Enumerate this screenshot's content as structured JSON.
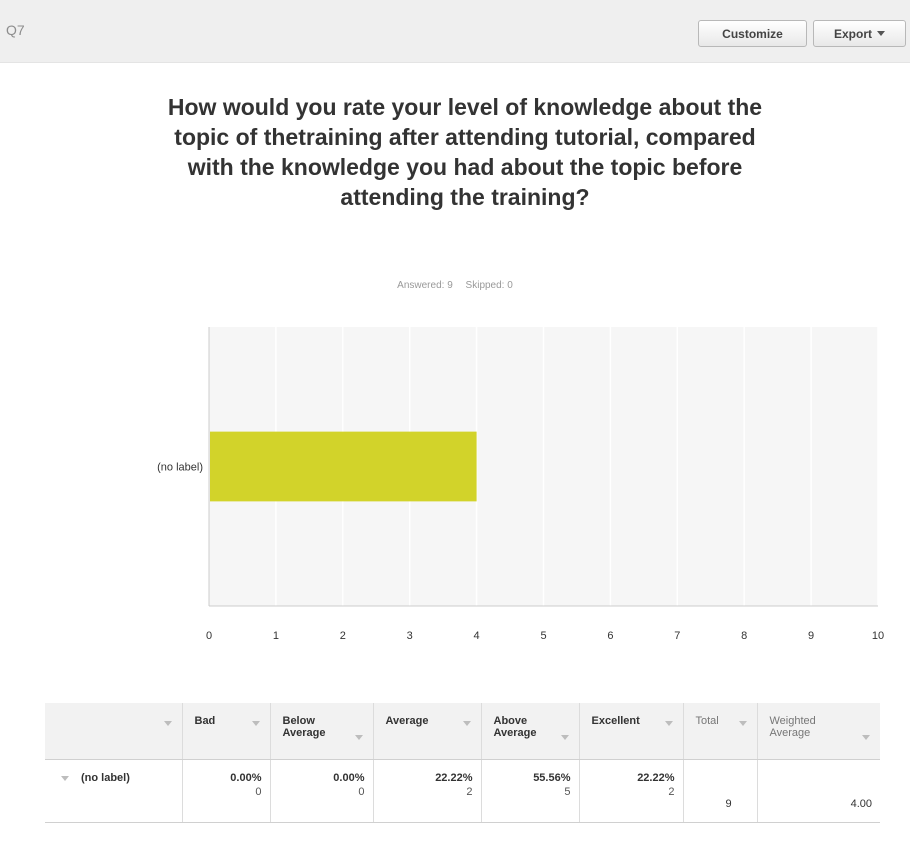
{
  "question": {
    "number": "Q7",
    "title": "How would you rate your level of knowledge about the topic of thetraining after attending tutorial, compared with the knowledge you had about the topic before attending the training?",
    "answered": "Answered: 9",
    "skipped": "Skipped: 0"
  },
  "toolbar": {
    "customize_label": "Customize",
    "export_label": "Export"
  },
  "chart_data": {
    "type": "bar",
    "orientation": "horizontal",
    "categories": [
      "(no label)"
    ],
    "values": [
      4.0
    ],
    "xlim": [
      0,
      10
    ],
    "x_ticks": [
      "0",
      "1",
      "2",
      "3",
      "4",
      "5",
      "6",
      "7",
      "8",
      "9",
      "10"
    ],
    "bar_color": "#d2d32a",
    "grid": true,
    "title": "",
    "xlabel": "",
    "ylabel": ""
  },
  "table": {
    "headers": [
      "",
      "Bad",
      "Below Average",
      "Average",
      "Above Average",
      "Excellent",
      "Total",
      "Weighted Average"
    ],
    "rows": [
      {
        "label": "(no label)",
        "cells": [
          {
            "pct": "0.00%",
            "count": "0"
          },
          {
            "pct": "0.00%",
            "count": "0"
          },
          {
            "pct": "22.22%",
            "count": "2"
          },
          {
            "pct": "55.56%",
            "count": "5"
          },
          {
            "pct": "22.22%",
            "count": "2"
          }
        ],
        "total": "9",
        "weighted_average": "4.00"
      }
    ]
  }
}
